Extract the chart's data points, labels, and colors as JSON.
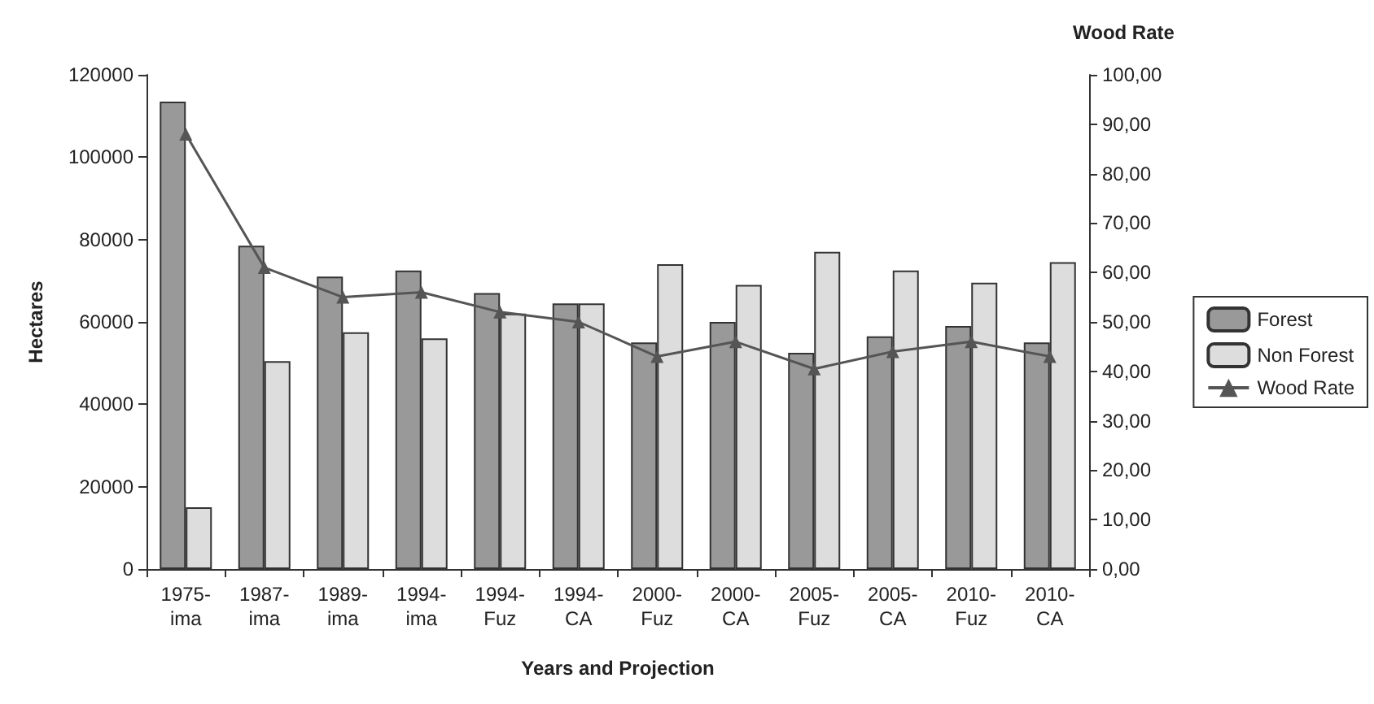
{
  "chart_data": {
    "type": "bar",
    "xlabel": "Years and Projection",
    "ylabel": "Hectares",
    "y2label": "Wood Rate",
    "categories": [
      "1975-ima",
      "1987-ima",
      "1989-ima",
      "1994-ima",
      "1994-Fuz",
      "1994-CA",
      "2000-Fuz",
      "2000-CA",
      "2005-Fuz",
      "2005-CA",
      "2010-Fuz",
      "2010-CA"
    ],
    "series": [
      {
        "name": "Forest",
        "color": "#999999",
        "values": [
          113500,
          78500,
          71000,
          72500,
          67000,
          64500,
          55000,
          60000,
          52500,
          56500,
          59000,
          55000
        ]
      },
      {
        "name": "Non Forest",
        "color": "#dddddd",
        "values": [
          15000,
          50500,
          57500,
          56000,
          62000,
          64500,
          74000,
          69000,
          77000,
          72500,
          69500,
          74500
        ]
      },
      {
        "name": "Wood Rate",
        "type": "line",
        "axis": "y2",
        "color": "#555555",
        "marker": "triangle",
        "values": [
          88,
          61,
          55,
          56,
          52,
          50,
          43,
          46,
          40.5,
          44,
          46,
          43
        ]
      }
    ],
    "ylim": [
      0,
      120000
    ],
    "yticks": [
      0,
      20000,
      40000,
      60000,
      80000,
      100000,
      120000
    ],
    "y2lim": [
      0,
      100
    ],
    "y2ticks": [
      {
        "value": 0,
        "label": "0,00"
      },
      {
        "value": 10,
        "label": "10,00"
      },
      {
        "value": 20,
        "label": "20,00"
      },
      {
        "value": 30,
        "label": "30,00"
      },
      {
        "value": 40,
        "label": "40,00"
      },
      {
        "value": 50,
        "label": "50,00"
      },
      {
        "value": 60,
        "label": "60,00"
      },
      {
        "value": 70,
        "label": "70,00"
      },
      {
        "value": 80,
        "label": "80,00"
      },
      {
        "value": 90,
        "label": "90,00"
      },
      {
        "value": 100,
        "label": "100,00"
      }
    ],
    "grid": false,
    "legend": "right"
  }
}
